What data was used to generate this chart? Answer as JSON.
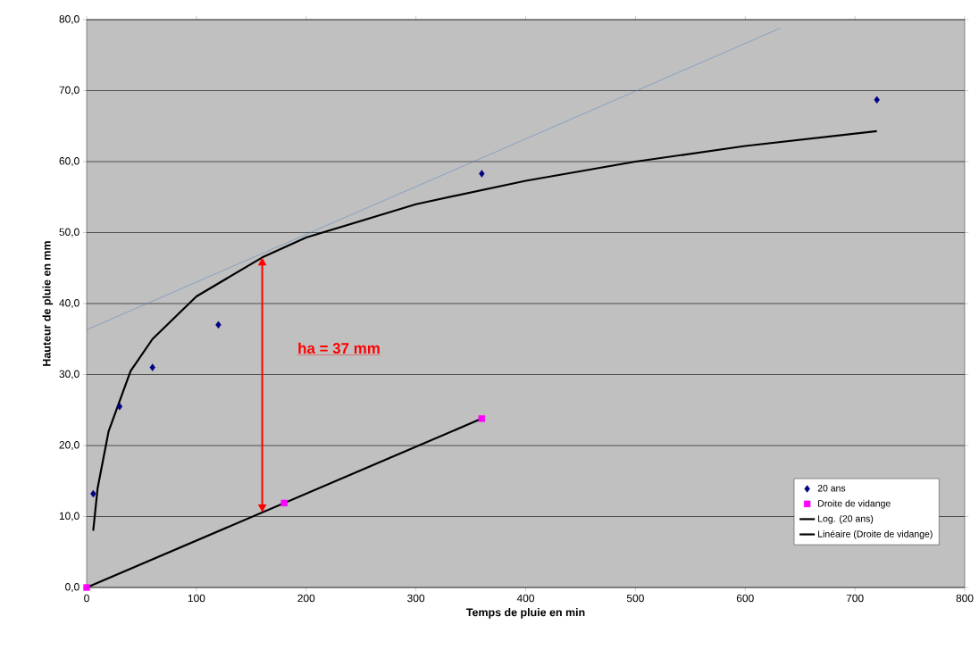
{
  "chart_data": {
    "type": "scatter",
    "xlabel": "Temps de pluie en min",
    "ylabel": "Hauteur de pluie en mm",
    "xlim": [
      0,
      800
    ],
    "xticks": [
      0,
      100,
      200,
      300,
      400,
      500,
      600,
      700,
      800
    ],
    "ylim": [
      0,
      80
    ],
    "yticks": [
      {
        "value": 0,
        "label": "0,0"
      },
      {
        "value": 10,
        "label": "10,0"
      },
      {
        "value": 20,
        "label": "20,0"
      },
      {
        "value": 30,
        "label": "30,0"
      },
      {
        "value": 40,
        "label": "40,0"
      },
      {
        "value": 50,
        "label": "50,0"
      },
      {
        "value": 60,
        "label": "60,0"
      },
      {
        "value": 70,
        "label": "70,0"
      },
      {
        "value": 80,
        "label": "80,0"
      }
    ],
    "grid": "y",
    "legend": "bottom right",
    "series": [
      {
        "name": "20 ans",
        "marker": "diamond",
        "color": "#000080",
        "x": [
          6,
          30,
          60,
          120,
          360,
          720
        ],
        "values": [
          13.2,
          25.5,
          31.0,
          37.0,
          58.3,
          68.7
        ]
      },
      {
        "name": "Droite de vidange",
        "marker": "square",
        "color": "#ff00ff",
        "x": [
          0,
          180,
          360
        ],
        "values": [
          0.0,
          11.9,
          23.8
        ]
      },
      {
        "name": "Log. (20 ans)",
        "type": "line",
        "marker": "none",
        "line_style": "solid",
        "color": "#000000",
        "x": [
          6,
          10,
          20,
          40,
          60,
          100,
          160,
          200,
          300,
          400,
          500,
          600,
          720
        ],
        "values": [
          8.0,
          14.0,
          22.0,
          30.5,
          35.0,
          41.0,
          46.5,
          49.3,
          54.0,
          57.3,
          60.0,
          62.2,
          64.3
        ]
      },
      {
        "name": "Linéaire (Droite de vidange)",
        "type": "line",
        "marker": "none",
        "line_style": "solid",
        "color": "#000000",
        "x": [
          0,
          360
        ],
        "values": [
          0.0,
          23.8
        ]
      },
      {
        "type": "line",
        "marker": "none",
        "line_style": "solid",
        "color": "#4f81bd",
        "x": [
          0,
          632
        ],
        "values": [
          36.3,
          78.8
        ]
      }
    ],
    "annotations": [
      "ha = 37 mm"
    ]
  }
}
